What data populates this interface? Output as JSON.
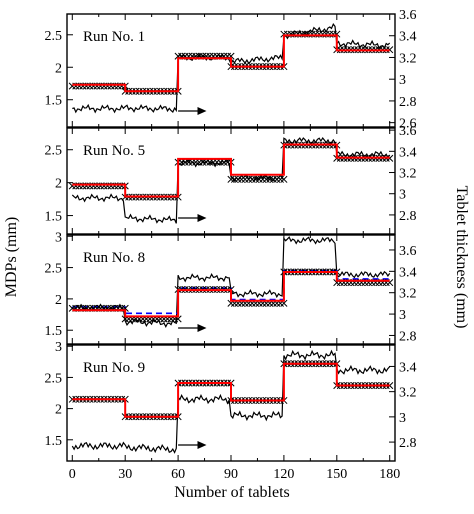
{
  "chart_data": {
    "type": "line",
    "xlabel": "Number of tablets",
    "ylabel_left": "MDPs (mm)",
    "ylabel_right": "Tablet thickness (mm)",
    "xlim": [
      -3,
      183
    ],
    "x_ticks": [
      0,
      30,
      60,
      90,
      120,
      150,
      180
    ],
    "x_tick_labels": [
      "0",
      "30",
      "60",
      "90",
      "120",
      "150",
      "180"
    ],
    "colors": {
      "thickness": "#000000",
      "mdp_step": "#ff0000",
      "fit_dashed": "#0000ff",
      "markers": "#000000"
    },
    "panels": [
      {
        "label": "Run No. 1",
        "ylim_left": [
          1.08,
          2.82
        ],
        "left_ticks": [
          1.5,
          2,
          2.5
        ],
        "left_tick_labels": [
          "1.5",
          "2",
          "2.5"
        ],
        "ylim_right": [
          2.56,
          3.6
        ],
        "right_ticks": [
          2.6,
          2.8,
          3,
          3.2,
          3.4,
          3.6
        ],
        "right_tick_labels": [
          "2.6",
          "2.8",
          "3",
          "3.2",
          "3.4",
          "3.6"
        ],
        "red_step": [
          1.73,
          1.63,
          2.14,
          2.01,
          2.49,
          2.26
        ],
        "cross_step": [
          1.71,
          1.63,
          2.17,
          2.01,
          2.51,
          2.27
        ],
        "blue_step": [],
        "thickness_base": [
          2.73,
          2.73,
          3.2,
          3.18,
          3.44,
          3.32
        ],
        "thickness_amp": 0.03,
        "thickness_offset": [
          0,
          -0.01,
          0,
          0.04,
          0.08,
          -0.02
        ]
      },
      {
        "label": "Run No. 5",
        "ylim_left": [
          1.22,
          2.83
        ],
        "left_ticks": [
          1.5,
          2,
          2.5
        ],
        "left_tick_labels": [
          "1.5",
          "2",
          "2.5"
        ],
        "ylim_right": [
          2.62,
          3.62
        ],
        "right_ticks": [
          2.8,
          3,
          3.2,
          3.4,
          3.6
        ],
        "right_tick_labels": [
          "2.8",
          "3",
          "3.2",
          "3.4",
          "3.6"
        ],
        "red_step": [
          1.97,
          1.79,
          2.36,
          2.12,
          2.58,
          2.38
        ],
        "cross_step": [
          1.95,
          1.78,
          2.31,
          2.05,
          2.57,
          2.37
        ],
        "blue_step": [],
        "thickness_base": [
          2.96,
          2.76,
          3.29,
          3.15,
          3.5,
          3.37
        ],
        "thickness_amp": 0.03,
        "thickness_offset": [
          0,
          -0.02,
          0,
          0,
          0,
          0
        ]
      },
      {
        "label": "Run No. 8",
        "ylim_left": [
          1.28,
          3.02
        ],
        "left_ticks": [
          1.5,
          2,
          2.5,
          3
        ],
        "left_tick_labels": [
          "1.5",
          "2",
          "2.5",
          "3"
        ],
        "ylim_right": [
          2.72,
          3.74
        ],
        "right_ticks": [
          2.8,
          3,
          3.2,
          3.4,
          3.6
        ],
        "right_tick_labels": [
          "2.8",
          "3",
          "3.2",
          "3.4",
          "3.6"
        ],
        "red_step": [
          1.82,
          1.72,
          2.14,
          1.97,
          2.43,
          2.29
        ],
        "cross_step": [
          1.85,
          1.68,
          2.15,
          1.93,
          2.43,
          2.26
        ],
        "blue_step": [
          1.87,
          1.77,
          2.17,
          1.99,
          2.45,
          2.32
        ],
        "thickness_base": [
          3.06,
          2.92,
          3.34,
          3.19,
          3.69,
          3.37
        ],
        "thickness_amp": 0.03,
        "thickness_offset": [
          0,
          -0.02,
          0,
          0,
          0,
          0
        ]
      },
      {
        "label": "Run No. 9",
        "ylim_left": [
          1.16,
          3.02
        ],
        "left_ticks": [
          1.5,
          2,
          2.5,
          3
        ],
        "left_tick_labels": [
          "1.5",
          "2",
          "2.5",
          "3"
        ],
        "ylim_right": [
          2.65,
          3.57
        ],
        "right_ticks": [
          2.8,
          3,
          3.2,
          3.4
        ],
        "right_tick_labels": [
          "2.8",
          "3",
          "3.2",
          "3.4"
        ],
        "red_step": [
          2.15,
          1.87,
          2.41,
          2.13,
          2.72,
          2.37
        ],
        "cross_step": [
          2.15,
          1.87,
          2.41,
          2.13,
          2.72,
          2.37
        ],
        "blue_step": [],
        "thickness_base": [
          2.77,
          2.75,
          3.14,
          3.01,
          3.49,
          3.37
        ],
        "thickness_amp": 0.03,
        "thickness_offset": [
          0,
          -0.02,
          0,
          0,
          0,
          0
        ]
      }
    ]
  }
}
